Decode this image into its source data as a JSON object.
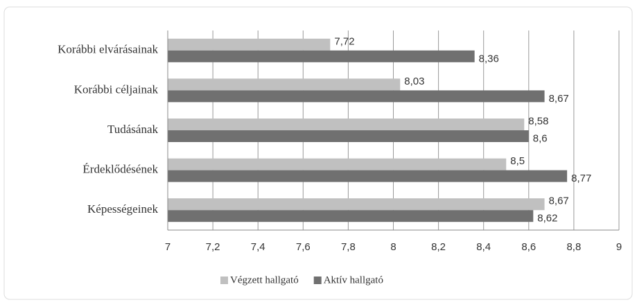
{
  "chart_data": {
    "type": "hbar",
    "categories": [
      "Korábbi elvárásainak",
      "Korábbi céljainak",
      "Tudásának",
      "Érdeklődésének",
      "Képességeinek"
    ],
    "series": [
      {
        "name": "Végzett hallgató",
        "color": "#c0c0c0",
        "values": [
          7.72,
          8.03,
          8.58,
          8.5,
          8.67
        ],
        "value_labels": [
          "7,72",
          "8,03",
          "8,58",
          "8,5",
          "8,67"
        ]
      },
      {
        "name": "Aktív hallgató",
        "color": "#707070",
        "values": [
          8.36,
          8.67,
          8.6,
          8.77,
          8.62
        ],
        "value_labels": [
          "8,36",
          "8,67",
          "8,6",
          "8,77",
          "8,62"
        ]
      }
    ],
    "xlim": [
      7,
      9
    ],
    "xticks": [
      7,
      {
        "value": 7.2,
        "label": "7,2"
      },
      {
        "value": 7.4,
        "label": "7,4"
      },
      {
        "value": 7.6,
        "label": "7,6"
      },
      {
        "value": 7.8,
        "label": "7,8"
      },
      8,
      {
        "value": 8.2,
        "label": "8,2"
      },
      {
        "value": 8.4,
        "label": "8,4"
      },
      {
        "value": 8.6,
        "label": "8,6"
      },
      {
        "value": 8.8,
        "label": "8,8"
      },
      9
    ],
    "grid": true,
    "legend": "bottom"
  }
}
